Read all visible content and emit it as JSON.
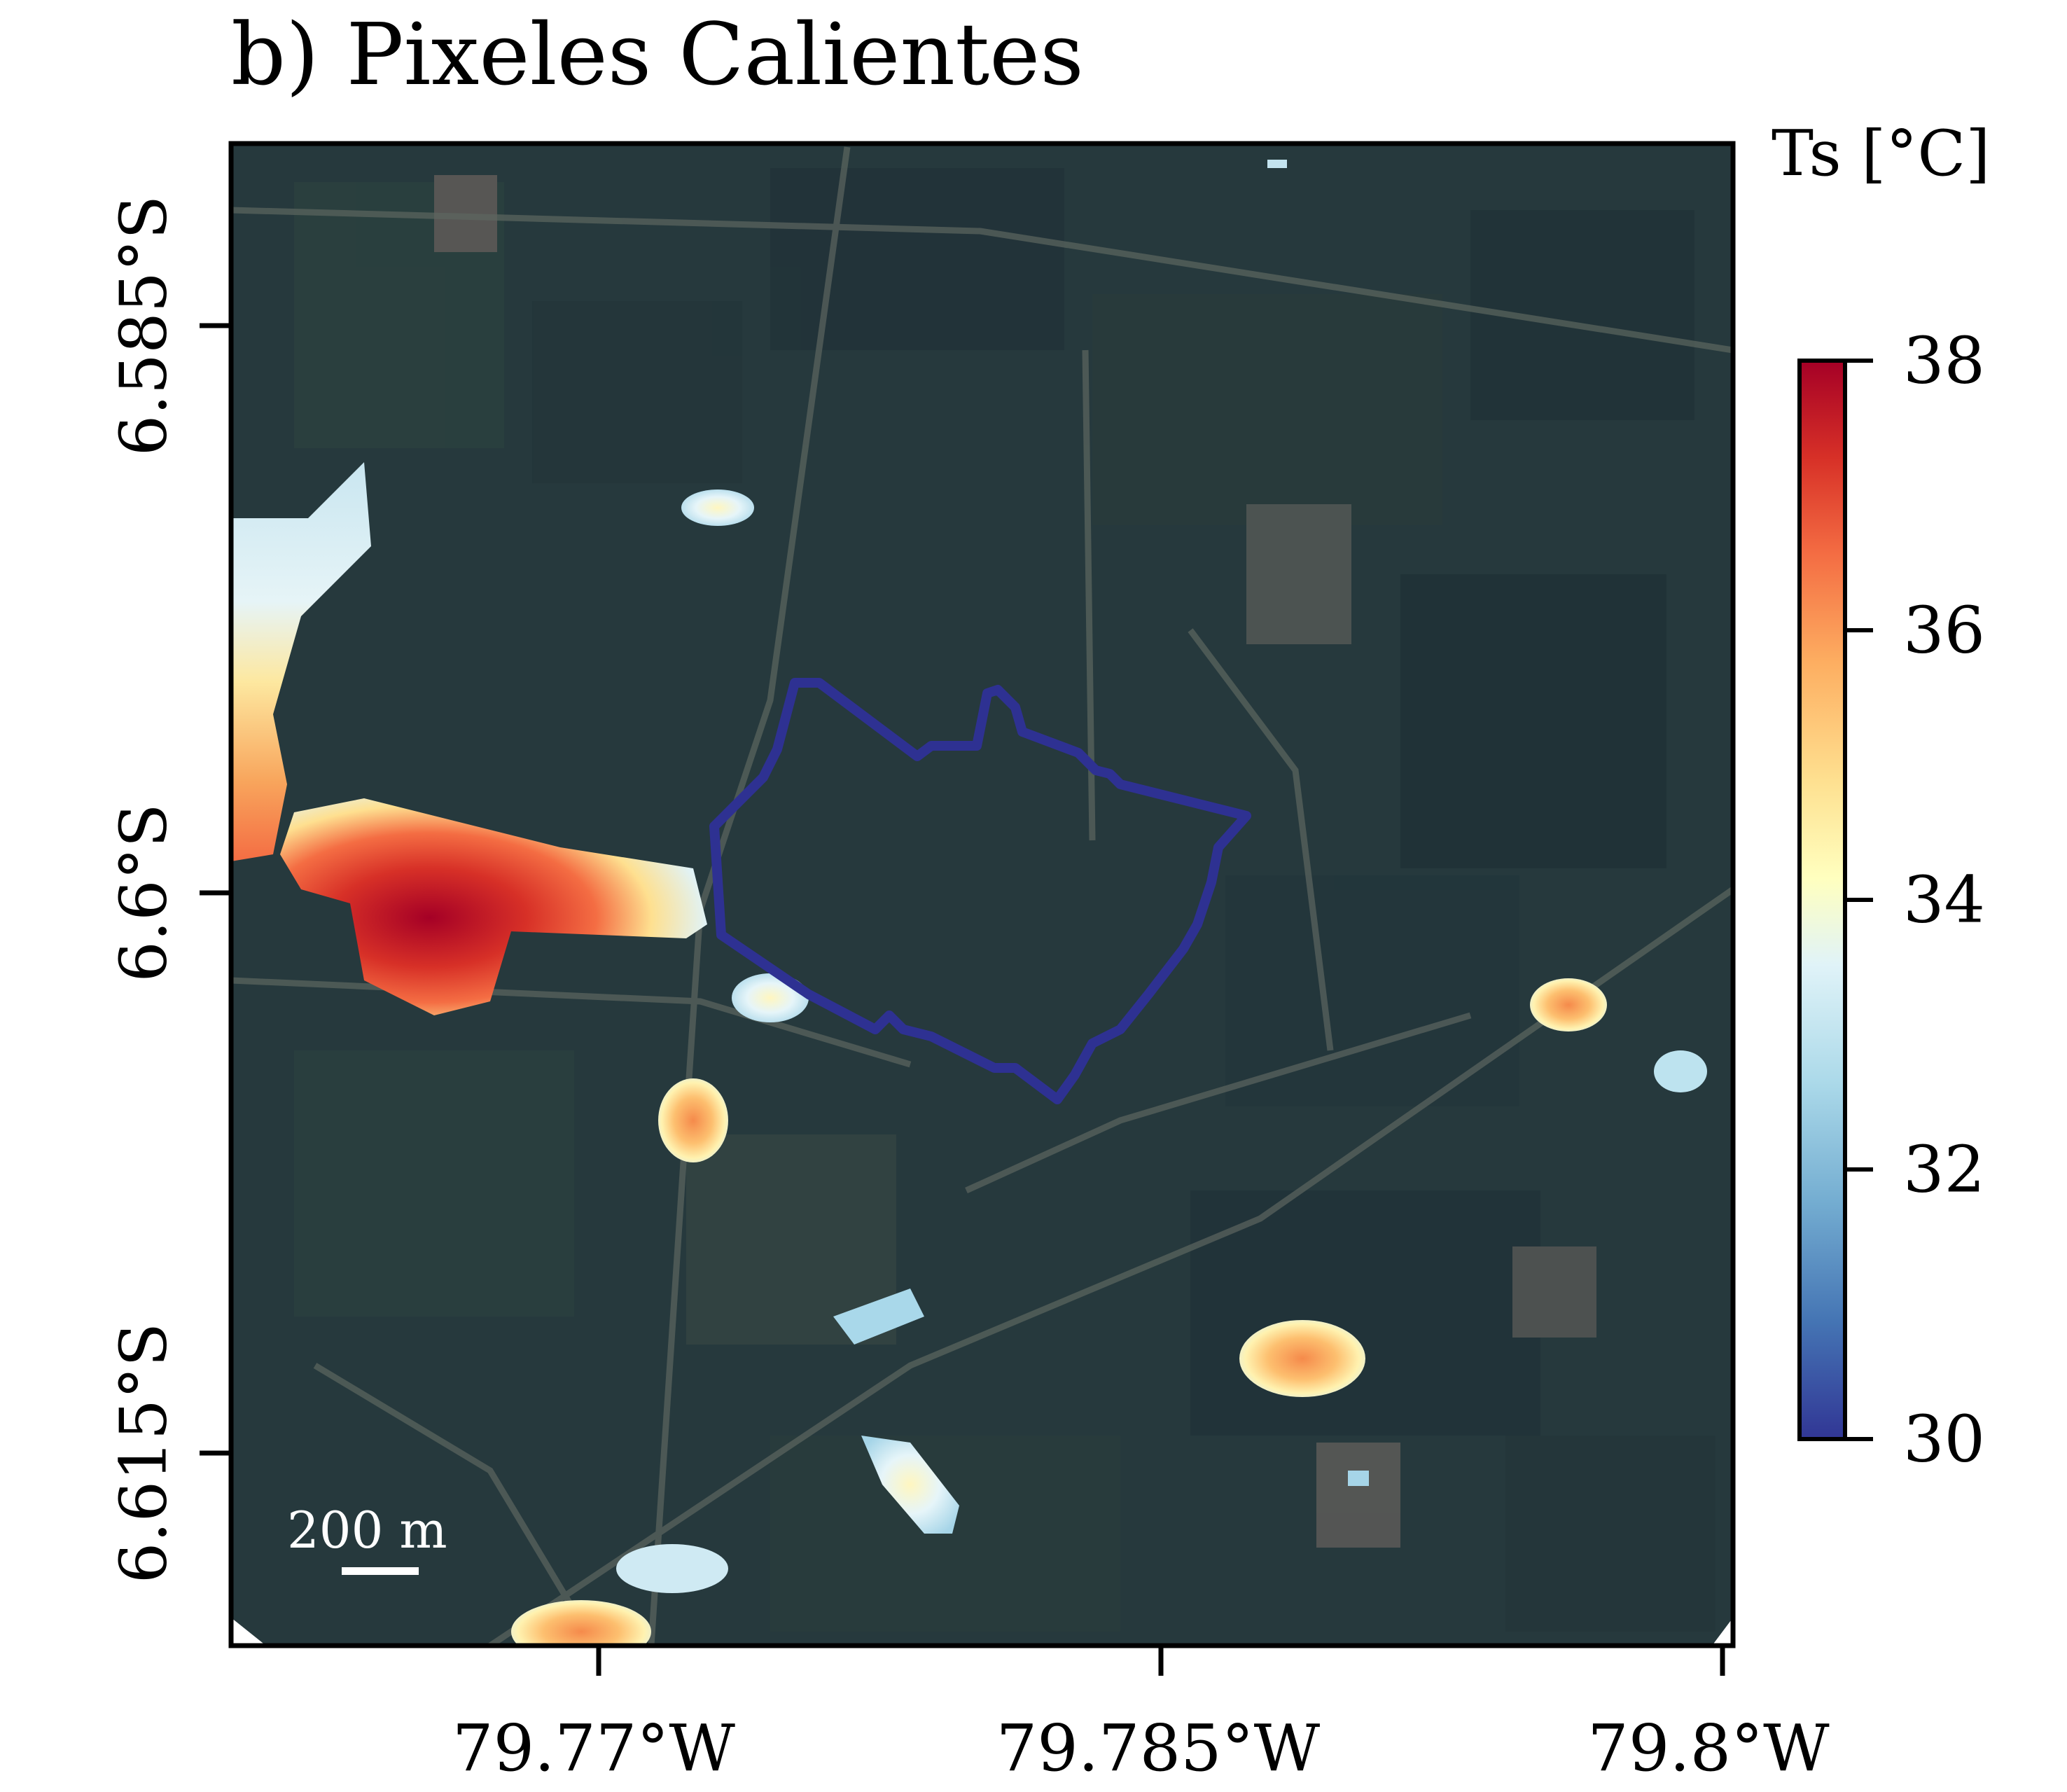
{
  "title": "b) Pixeles Calientes",
  "axes": {
    "x_ticks": [
      "79.77°W",
      "79.785°W",
      "79.8°W"
    ],
    "y_ticks": [
      "6.585°S",
      "6.6°S",
      "6.615°S"
    ]
  },
  "colorbar": {
    "label": "Ts [°C]",
    "ticks": [
      "38",
      "36",
      "34",
      "32",
      "30"
    ],
    "range": [
      30,
      38
    ],
    "colormap": "RdYlBu_r",
    "colors": [
      "#313695",
      "#4575b4",
      "#74add1",
      "#abd9e9",
      "#e0f3f8",
      "#fee090",
      "#fdae61",
      "#f46d43",
      "#d73027",
      "#a50026"
    ]
  },
  "scale_bar": {
    "label": "200 m"
  },
  "map": {
    "basemap": "satellite imagery (agricultural fields)",
    "boundary_color": "#2e3192",
    "hot_pixels_color_scale": "Ts"
  }
}
